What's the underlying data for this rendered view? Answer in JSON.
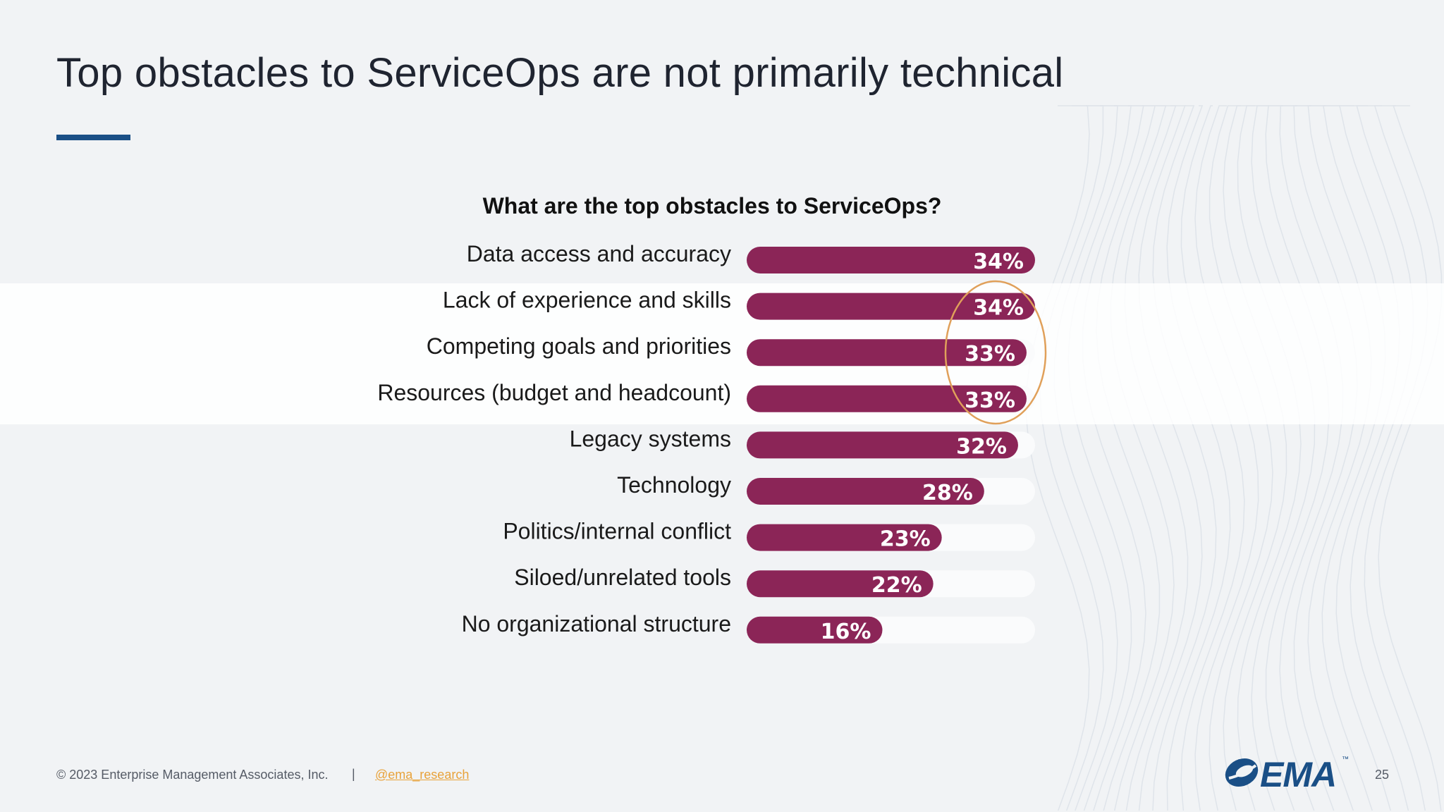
{
  "slide": {
    "title": "Top obstacles to ServiceOps are not primarily technical"
  },
  "colors": {
    "bar": "#8b2557",
    "track": "#fafbfc",
    "accent_rule": "#1a4f86",
    "annotation_circle": "#e0a05a",
    "link": "#e8a23a"
  },
  "chart_data": {
    "type": "bar",
    "orientation": "horizontal",
    "title": "What are the top obstacles to ServiceOps?",
    "categories": [
      "Data access and accuracy",
      "Lack of experience and skills",
      "Competing goals and priorities",
      "Resources (budget and headcount)",
      "Legacy systems",
      "Technology",
      "Politics/internal conflict",
      "Siloed/unrelated tools",
      "No organizational structure"
    ],
    "values": [
      34,
      34,
      33,
      33,
      32,
      28,
      23,
      22,
      16
    ],
    "value_labels": [
      "34%",
      "34%",
      "33%",
      "33%",
      "32%",
      "28%",
      "23%",
      "22%",
      "16%"
    ],
    "xlim": [
      0,
      34
    ],
    "grid": false,
    "legend": "none",
    "highlighted_categories": [
      "Lack of experience and skills",
      "Competing goals and priorities",
      "Resources (budget and headcount)"
    ]
  },
  "footer": {
    "copyright": "© 2023 Enterprise Management Associates, Inc.",
    "separator": "|",
    "social_handle": "@ema_research",
    "logo_text": "EMA",
    "logo_tm": "™",
    "page_number": "25"
  }
}
